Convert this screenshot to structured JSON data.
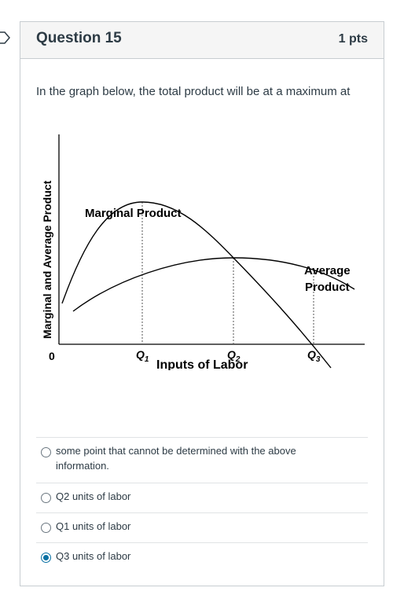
{
  "question": {
    "title": "Question 15",
    "points": "1 pts",
    "text": "In the graph below, the total product will be at a maximum at"
  },
  "graph": {
    "ylabel": "Marginal and Average Product",
    "xlabel": "Inputs of Labor",
    "origin_label": "0",
    "mp_label": "Marginal Product",
    "ap_label_line1": "Average",
    "ap_label_line2": "Product",
    "x_ticks": [
      {
        "letter": "Q",
        "sub": "1"
      },
      {
        "letter": "Q",
        "sub": "2"
      },
      {
        "letter": "Q",
        "sub": "3"
      }
    ]
  },
  "answers": [
    {
      "label": "some point that cannot be determined with the above information.",
      "selected": false
    },
    {
      "label": "Q2 units of labor",
      "selected": false
    },
    {
      "label": "Q1 units of labor",
      "selected": false
    },
    {
      "label": "Q3 units of labor",
      "selected": true
    }
  ],
  "colors": {
    "accent": "#0770a3",
    "border": "#c7cdd1",
    "header_bg": "#f5f5f5",
    "text": "#2d3b45"
  }
}
